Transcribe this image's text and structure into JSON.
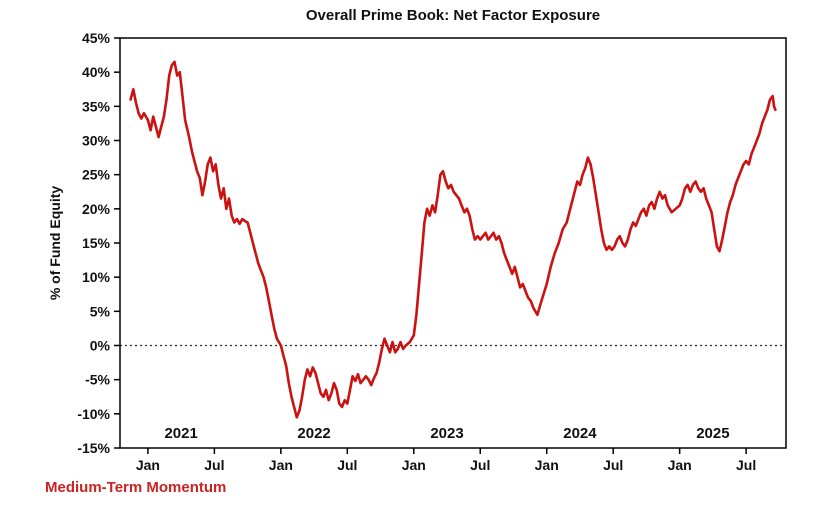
{
  "title": "Overall Prime Book: Net Factor Exposure",
  "legend": {
    "label": "Medium-Term Momentum",
    "color": "#CC2222"
  },
  "chart_data": {
    "type": "line",
    "title": "Overall Prime Book: Net Factor Exposure",
    "xlabel": "",
    "ylabel": "% of Fund Equity",
    "ylim": [
      -15,
      45
    ],
    "xlim": [
      2020.79,
      2025.8
    ],
    "y_ticks": [
      45,
      40,
      35,
      30,
      25,
      20,
      15,
      10,
      5,
      0,
      -5,
      -10,
      -15
    ],
    "y_tick_suffix": "%",
    "x_ticks": [
      {
        "pos": 2021.0,
        "label": "Jan"
      },
      {
        "pos": 2021.5,
        "label": "Jul"
      },
      {
        "pos": 2022.0,
        "label": "Jan"
      },
      {
        "pos": 2022.5,
        "label": "Jul"
      },
      {
        "pos": 2023.0,
        "label": "Jan"
      },
      {
        "pos": 2023.5,
        "label": "Jul"
      },
      {
        "pos": 2024.0,
        "label": "Jan"
      },
      {
        "pos": 2024.5,
        "label": "Jul"
      },
      {
        "pos": 2025.0,
        "label": "Jan"
      },
      {
        "pos": 2025.5,
        "label": "Jul"
      }
    ],
    "year_labels": [
      {
        "pos": 2021.25,
        "label": "2021"
      },
      {
        "pos": 2022.25,
        "label": "2022"
      },
      {
        "pos": 2023.25,
        "label": "2023"
      },
      {
        "pos": 2024.25,
        "label": "2024"
      },
      {
        "pos": 2025.25,
        "label": "2025"
      }
    ],
    "zero_line": true,
    "grid": false,
    "legend_position": "bottom-left",
    "line_color": "#CC1111",
    "series": [
      {
        "name": "Medium-Term Momentum",
        "points": [
          [
            2020.87,
            36.0
          ],
          [
            2020.89,
            37.5
          ],
          [
            2020.91,
            35.5
          ],
          [
            2020.93,
            34.0
          ],
          [
            2020.95,
            33.2
          ],
          [
            2020.97,
            34.0
          ],
          [
            2021.0,
            33.0
          ],
          [
            2021.02,
            31.5
          ],
          [
            2021.04,
            33.5
          ],
          [
            2021.06,
            32.0
          ],
          [
            2021.08,
            30.5
          ],
          [
            2021.1,
            32.0
          ],
          [
            2021.12,
            33.5
          ],
          [
            2021.14,
            36.0
          ],
          [
            2021.16,
            39.5
          ],
          [
            2021.18,
            41.0
          ],
          [
            2021.2,
            41.5
          ],
          [
            2021.22,
            39.5
          ],
          [
            2021.24,
            40.0
          ],
          [
            2021.26,
            36.5
          ],
          [
            2021.28,
            33.0
          ],
          [
            2021.31,
            30.5
          ],
          [
            2021.33,
            28.5
          ],
          [
            2021.35,
            27.0
          ],
          [
            2021.37,
            25.5
          ],
          [
            2021.39,
            24.5
          ],
          [
            2021.41,
            22.0
          ],
          [
            2021.43,
            24.0
          ],
          [
            2021.45,
            26.5
          ],
          [
            2021.47,
            27.5
          ],
          [
            2021.49,
            25.5
          ],
          [
            2021.51,
            26.5
          ],
          [
            2021.53,
            23.5
          ],
          [
            2021.55,
            21.5
          ],
          [
            2021.57,
            23.0
          ],
          [
            2021.59,
            20.0
          ],
          [
            2021.61,
            21.5
          ],
          [
            2021.63,
            19.0
          ],
          [
            2021.65,
            18.0
          ],
          [
            2021.67,
            18.5
          ],
          [
            2021.69,
            17.8
          ],
          [
            2021.71,
            18.5
          ],
          [
            2021.73,
            18.2
          ],
          [
            2021.75,
            18.0
          ],
          [
            2021.77,
            16.5
          ],
          [
            2021.79,
            15.0
          ],
          [
            2021.81,
            13.5
          ],
          [
            2021.83,
            12.0
          ],
          [
            2021.85,
            11.0
          ],
          [
            2021.87,
            10.0
          ],
          [
            2021.89,
            8.5
          ],
          [
            2021.91,
            6.5
          ],
          [
            2021.93,
            4.5
          ],
          [
            2021.95,
            2.5
          ],
          [
            2021.97,
            1.0
          ],
          [
            2022.0,
            0.0
          ],
          [
            2022.02,
            -1.5
          ],
          [
            2022.04,
            -3.0
          ],
          [
            2022.06,
            -5.5
          ],
          [
            2022.08,
            -7.5
          ],
          [
            2022.1,
            -9.0
          ],
          [
            2022.12,
            -10.5
          ],
          [
            2022.14,
            -9.5
          ],
          [
            2022.16,
            -7.5
          ],
          [
            2022.18,
            -5.0
          ],
          [
            2022.2,
            -3.5
          ],
          [
            2022.22,
            -4.5
          ],
          [
            2022.24,
            -3.2
          ],
          [
            2022.26,
            -4.0
          ],
          [
            2022.28,
            -5.5
          ],
          [
            2022.3,
            -7.0
          ],
          [
            2022.32,
            -7.5
          ],
          [
            2022.34,
            -6.5
          ],
          [
            2022.36,
            -8.0
          ],
          [
            2022.38,
            -7.0
          ],
          [
            2022.4,
            -5.5
          ],
          [
            2022.42,
            -6.5
          ],
          [
            2022.44,
            -8.5
          ],
          [
            2022.46,
            -9.0
          ],
          [
            2022.48,
            -8.0
          ],
          [
            2022.5,
            -8.5
          ],
          [
            2022.52,
            -6.5
          ],
          [
            2022.54,
            -4.5
          ],
          [
            2022.56,
            -5.2
          ],
          [
            2022.58,
            -4.2
          ],
          [
            2022.6,
            -5.5
          ],
          [
            2022.62,
            -5.0
          ],
          [
            2022.64,
            -4.5
          ],
          [
            2022.66,
            -5.0
          ],
          [
            2022.68,
            -5.8
          ],
          [
            2022.7,
            -4.8
          ],
          [
            2022.72,
            -4.0
          ],
          [
            2022.74,
            -2.5
          ],
          [
            2022.76,
            -0.5
          ],
          [
            2022.78,
            1.0
          ],
          [
            2022.8,
            0.0
          ],
          [
            2022.82,
            -1.0
          ],
          [
            2022.84,
            0.5
          ],
          [
            2022.86,
            -1.0
          ],
          [
            2022.88,
            -0.5
          ],
          [
            2022.9,
            0.5
          ],
          [
            2022.92,
            -0.5
          ],
          [
            2022.94,
            0.0
          ],
          [
            2022.97,
            0.5
          ],
          [
            2023.0,
            1.5
          ],
          [
            2023.02,
            4.5
          ],
          [
            2023.04,
            9.0
          ],
          [
            2023.06,
            13.5
          ],
          [
            2023.08,
            18.0
          ],
          [
            2023.1,
            20.0
          ],
          [
            2023.12,
            19.0
          ],
          [
            2023.14,
            20.5
          ],
          [
            2023.16,
            19.5
          ],
          [
            2023.18,
            22.0
          ],
          [
            2023.2,
            25.0
          ],
          [
            2023.22,
            25.5
          ],
          [
            2023.24,
            24.0
          ],
          [
            2023.26,
            23.0
          ],
          [
            2023.28,
            23.5
          ],
          [
            2023.3,
            22.5
          ],
          [
            2023.32,
            22.0
          ],
          [
            2023.34,
            21.5
          ],
          [
            2023.36,
            20.5
          ],
          [
            2023.38,
            19.5
          ],
          [
            2023.4,
            20.0
          ],
          [
            2023.42,
            19.0
          ],
          [
            2023.44,
            17.0
          ],
          [
            2023.46,
            15.5
          ],
          [
            2023.48,
            16.0
          ],
          [
            2023.5,
            15.5
          ],
          [
            2023.52,
            16.0
          ],
          [
            2023.54,
            16.5
          ],
          [
            2023.56,
            15.5
          ],
          [
            2023.58,
            16.0
          ],
          [
            2023.6,
            16.5
          ],
          [
            2023.62,
            15.5
          ],
          [
            2023.64,
            16.0
          ],
          [
            2023.66,
            15.0
          ],
          [
            2023.68,
            13.5
          ],
          [
            2023.7,
            12.5
          ],
          [
            2023.72,
            11.5
          ],
          [
            2023.74,
            10.5
          ],
          [
            2023.76,
            11.5
          ],
          [
            2023.78,
            10.0
          ],
          [
            2023.8,
            8.5
          ],
          [
            2023.82,
            9.0
          ],
          [
            2023.84,
            8.0
          ],
          [
            2023.86,
            7.0
          ],
          [
            2023.88,
            6.5
          ],
          [
            2023.9,
            5.5
          ],
          [
            2023.93,
            4.5
          ],
          [
            2023.96,
            6.5
          ],
          [
            2024.0,
            9.0
          ],
          [
            2024.03,
            11.5
          ],
          [
            2024.06,
            13.5
          ],
          [
            2024.09,
            15.0
          ],
          [
            2024.12,
            17.0
          ],
          [
            2024.15,
            18.0
          ],
          [
            2024.17,
            19.5
          ],
          [
            2024.19,
            21.0
          ],
          [
            2024.21,
            22.5
          ],
          [
            2024.23,
            24.0
          ],
          [
            2024.25,
            23.5
          ],
          [
            2024.27,
            25.0
          ],
          [
            2024.29,
            26.0
          ],
          [
            2024.31,
            27.5
          ],
          [
            2024.33,
            26.5
          ],
          [
            2024.35,
            24.5
          ],
          [
            2024.37,
            22.0
          ],
          [
            2024.39,
            19.5
          ],
          [
            2024.41,
            17.0
          ],
          [
            2024.43,
            15.0
          ],
          [
            2024.45,
            14.0
          ],
          [
            2024.47,
            14.5
          ],
          [
            2024.49,
            14.0
          ],
          [
            2024.51,
            14.5
          ],
          [
            2024.53,
            15.5
          ],
          [
            2024.55,
            16.0
          ],
          [
            2024.57,
            15.0
          ],
          [
            2024.59,
            14.5
          ],
          [
            2024.61,
            15.5
          ],
          [
            2024.63,
            17.0
          ],
          [
            2024.65,
            18.0
          ],
          [
            2024.67,
            17.5
          ],
          [
            2024.69,
            18.5
          ],
          [
            2024.71,
            19.5
          ],
          [
            2024.73,
            20.0
          ],
          [
            2024.75,
            19.0
          ],
          [
            2024.77,
            20.5
          ],
          [
            2024.79,
            21.0
          ],
          [
            2024.81,
            20.0
          ],
          [
            2024.83,
            21.5
          ],
          [
            2024.85,
            22.5
          ],
          [
            2024.87,
            21.5
          ],
          [
            2024.89,
            22.0
          ],
          [
            2024.91,
            20.5
          ],
          [
            2024.94,
            19.5
          ],
          [
            2024.97,
            20.0
          ],
          [
            2025.0,
            20.5
          ],
          [
            2025.02,
            21.5
          ],
          [
            2025.04,
            23.0
          ],
          [
            2025.06,
            23.5
          ],
          [
            2025.08,
            22.5
          ],
          [
            2025.1,
            23.5
          ],
          [
            2025.12,
            24.0
          ],
          [
            2025.14,
            23.0
          ],
          [
            2025.16,
            22.5
          ],
          [
            2025.18,
            23.0
          ],
          [
            2025.2,
            21.5
          ],
          [
            2025.22,
            20.5
          ],
          [
            2025.24,
            19.5
          ],
          [
            2025.26,
            17.0
          ],
          [
            2025.28,
            14.5
          ],
          [
            2025.3,
            13.8
          ],
          [
            2025.32,
            15.5
          ],
          [
            2025.34,
            17.5
          ],
          [
            2025.36,
            19.5
          ],
          [
            2025.38,
            21.0
          ],
          [
            2025.4,
            22.0
          ],
          [
            2025.42,
            23.5
          ],
          [
            2025.44,
            24.5
          ],
          [
            2025.46,
            25.5
          ],
          [
            2025.48,
            26.5
          ],
          [
            2025.5,
            27.0
          ],
          [
            2025.52,
            26.5
          ],
          [
            2025.54,
            28.0
          ],
          [
            2025.56,
            29.0
          ],
          [
            2025.58,
            30.0
          ],
          [
            2025.6,
            31.0
          ],
          [
            2025.62,
            32.5
          ],
          [
            2025.64,
            33.5
          ],
          [
            2025.66,
            34.5
          ],
          [
            2025.68,
            36.0
          ],
          [
            2025.7,
            36.5
          ],
          [
            2025.71,
            35.0
          ],
          [
            2025.72,
            34.5
          ]
        ]
      }
    ]
  }
}
